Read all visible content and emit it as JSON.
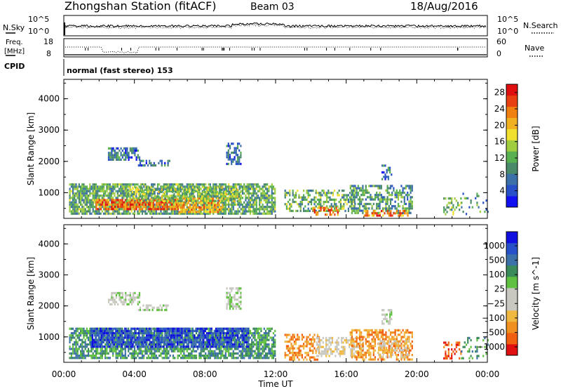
{
  "header": {
    "station": "Zhongshan Station (fitACF)",
    "beam": "Beam 03",
    "date": "18/Aug/2016"
  },
  "panel_labels": {
    "nsky": "N.Sky",
    "freq_line1": "Freq.",
    "freq_line2": "[MHz]",
    "cpid": "CPID",
    "nsearch": "N.Search",
    "nave": "Nave",
    "mode": "normal (fast stereo) 153"
  },
  "small_axes": {
    "noise_left_top": "10^5",
    "noise_left_bottom": "10^0",
    "noise_right_top": "10^5",
    "noise_right_bottom": "10^0",
    "freq_left_top": "18",
    "freq_left_bottom": "8",
    "nave_right_top": "60",
    "nave_right_bottom": "0"
  },
  "colors": {
    "power_scale": [
      "#1010f0",
      "#2850c8",
      "#3c70a8",
      "#4a8a6a",
      "#58b050",
      "#a0cc40",
      "#f0e030",
      "#f0b020",
      "#f08010",
      "#e84010",
      "#e01010"
    ],
    "velocity_scale": [
      "#e01010",
      "#f06010",
      "#f09020",
      "#f0b840",
      "#c8c8c0",
      "#c8c8c0",
      "#60c040",
      "#3a8a5a",
      "#3c70a8",
      "#2850c8",
      "#1010e0"
    ]
  },
  "chart_data": [
    {
      "type": "heatmap",
      "title": "",
      "ylabel": "Slant Range [km]",
      "xlabel": "",
      "ylim": [
        180,
        4620
      ],
      "yticks": [
        "1000",
        "2000",
        "3000",
        "4000"
      ],
      "colorbar_label": "Power [dB]",
      "colorbar_ticks": [
        "4",
        "8",
        "12",
        "16",
        "20",
        "24",
        "28"
      ],
      "colorbar_range": [
        0,
        30
      ],
      "blobs": [
        {
          "t0": 0.3,
          "t1": 12.0,
          "r0": 300,
          "r1": 1300,
          "v": 11,
          "density": 0.8
        },
        {
          "t0": 1.8,
          "t1": 6.5,
          "r0": 450,
          "r1": 800,
          "v": 25,
          "density": 0.8
        },
        {
          "t0": 6.5,
          "t1": 9.0,
          "r0": 400,
          "r1": 850,
          "v": 22,
          "density": 0.7
        },
        {
          "t0": 3.5,
          "t1": 10.0,
          "r0": 700,
          "r1": 1200,
          "v": 14,
          "density": 0.5
        },
        {
          "t0": 2.5,
          "t1": 4.3,
          "r0": 2050,
          "r1": 2450,
          "v": 6,
          "density": 0.6
        },
        {
          "t0": 4.2,
          "t1": 6.0,
          "r0": 1850,
          "r1": 2050,
          "v": 6,
          "density": 0.5
        },
        {
          "t0": 9.2,
          "t1": 10.0,
          "r0": 1900,
          "r1": 2600,
          "v": 6,
          "density": 0.6
        },
        {
          "t0": 12.5,
          "t1": 16.5,
          "r0": 400,
          "r1": 1100,
          "v": 12,
          "density": 0.5
        },
        {
          "t0": 14.0,
          "t1": 15.5,
          "r0": 300,
          "r1": 550,
          "v": 25,
          "density": 0.5
        },
        {
          "t0": 16.2,
          "t1": 19.7,
          "r0": 350,
          "r1": 1250,
          "v": 10,
          "density": 0.55
        },
        {
          "t0": 17.0,
          "t1": 19.5,
          "r0": 250,
          "r1": 450,
          "v": 24,
          "density": 0.6
        },
        {
          "t0": 18.0,
          "t1": 18.6,
          "r0": 1450,
          "r1": 1900,
          "v": 6,
          "density": 0.5
        },
        {
          "t0": 21.5,
          "t1": 22.5,
          "r0": 300,
          "r1": 850,
          "v": 13,
          "density": 0.35
        },
        {
          "t0": 22.5,
          "t1": 24.0,
          "r0": 300,
          "r1": 1000,
          "v": 8,
          "density": 0.15
        }
      ]
    },
    {
      "type": "heatmap",
      "title": "",
      "ylabel": "Slant Range [km]",
      "xlabel": "Time UT",
      "ylim": [
        180,
        4620
      ],
      "yticks": [
        "1000",
        "2000",
        "3000",
        "4000"
      ],
      "xticks": [
        "00:00",
        "04:00",
        "08:00",
        "12:00",
        "16:00",
        "20:00",
        "00:00"
      ],
      "xlim_hours": [
        0,
        24
      ],
      "colorbar_label": "Velocity [m s^-1]",
      "colorbar_ticks": [
        "1000",
        "500",
        "100",
        "25",
        "−25",
        "−100",
        "−500",
        "−1000"
      ],
      "blobs": [
        {
          "t0": 0.3,
          "t1": 12.0,
          "r0": 300,
          "r1": 1300,
          "v": 7,
          "density": 0.75
        },
        {
          "t0": 1.5,
          "t1": 10.5,
          "r0": 650,
          "r1": 1300,
          "v": 9,
          "density": 0.75
        },
        {
          "t0": 2.5,
          "t1": 4.3,
          "r0": 2050,
          "r1": 2450,
          "v": 5,
          "density": 0.6
        },
        {
          "t0": 4.2,
          "t1": 6.0,
          "r0": 1850,
          "r1": 2050,
          "v": 5,
          "density": 0.5
        },
        {
          "t0": 9.2,
          "t1": 10.0,
          "r0": 1900,
          "r1": 2600,
          "v": 5,
          "density": 0.6
        },
        {
          "t0": 12.5,
          "t1": 14.5,
          "r0": 300,
          "r1": 1100,
          "v": 2,
          "density": 0.5
        },
        {
          "t0": 14.3,
          "t1": 17.0,
          "r0": 350,
          "r1": 1000,
          "v": 4,
          "density": 0.55
        },
        {
          "t0": 16.2,
          "t1": 19.7,
          "r0": 300,
          "r1": 1250,
          "v": 2,
          "density": 0.6
        },
        {
          "t0": 17.8,
          "t1": 19.5,
          "r0": 350,
          "r1": 900,
          "v": 4,
          "density": 0.5
        },
        {
          "t0": 18.0,
          "t1": 18.6,
          "r0": 1450,
          "r1": 1900,
          "v": 5,
          "density": 0.5
        },
        {
          "t0": 21.5,
          "t1": 22.5,
          "r0": 300,
          "r1": 850,
          "v": 1,
          "density": 0.35
        },
        {
          "t0": 22.5,
          "t1": 24.0,
          "r0": 300,
          "r1": 1000,
          "v": 7,
          "density": 0.15
        }
      ]
    }
  ]
}
